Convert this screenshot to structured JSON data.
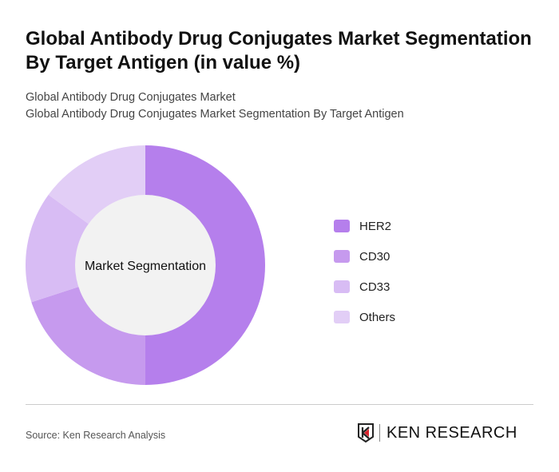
{
  "title": "Global Antibody Drug Conjugates Market Segmentation By Target Antigen (in value %)",
  "subtitle_1": "Global Antibody Drug Conjugates Market",
  "subtitle_2": "Global Antibody Drug Conjugates Market Segmentation By Target Antigen",
  "source": "Source: Ken Research Analysis",
  "logo_text": "KEN RESEARCH",
  "chart_data": {
    "type": "pie",
    "donut": true,
    "center_label": "Market Segmentation",
    "categories": [
      "HER2",
      "CD30",
      "CD33",
      "Others"
    ],
    "values": [
      50,
      20,
      15,
      15
    ],
    "colors": [
      "#b57fec",
      "#c69aee",
      "#d8bcf4",
      "#e2cef6"
    ],
    "legend_position": "right"
  }
}
